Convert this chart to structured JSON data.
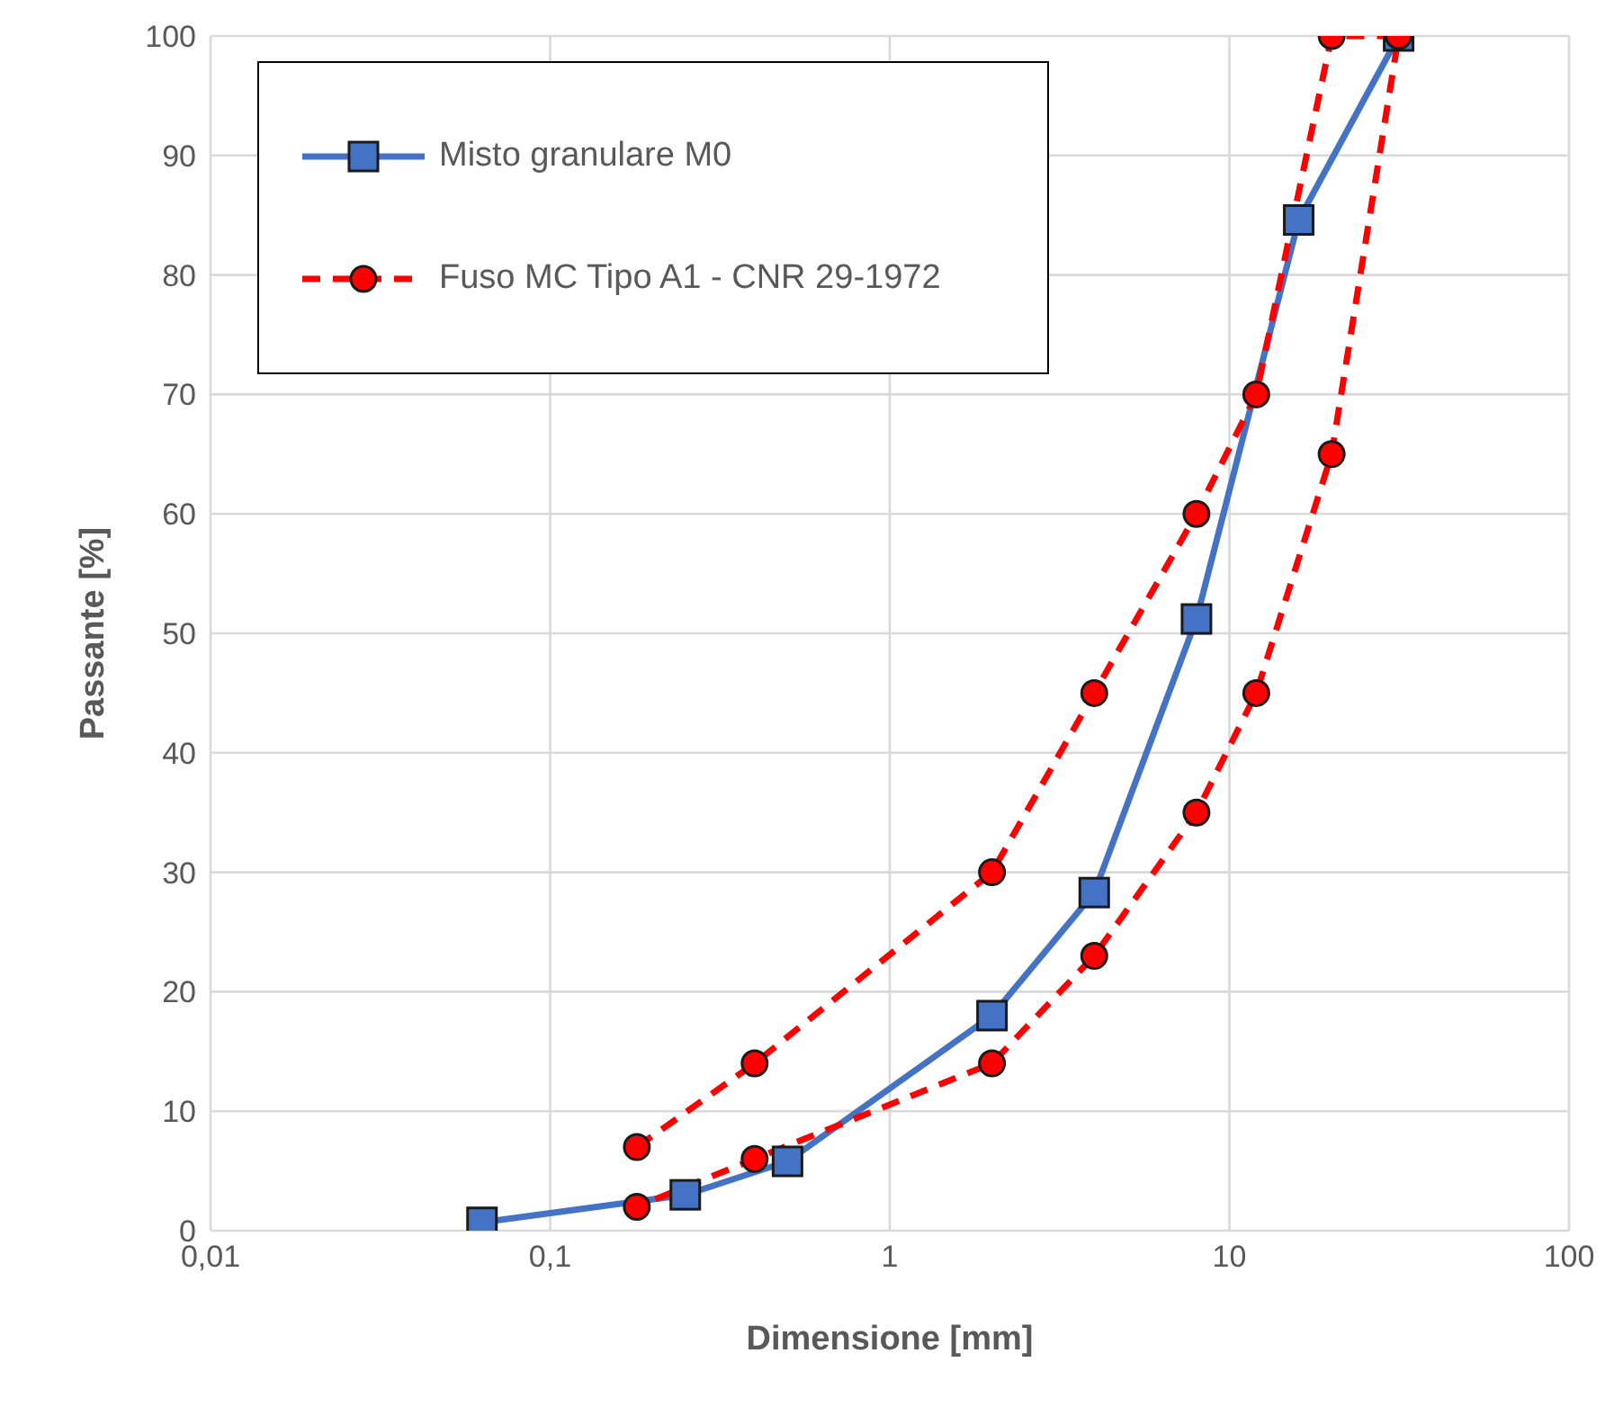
{
  "chart_data": {
    "type": "line",
    "xlabel": "Dimensione [mm]",
    "ylabel": "Passante [%]",
    "log": "x",
    "xlim": [
      0.01,
      100
    ],
    "xticks": [
      {
        "value": 0.01,
        "label": "0,01"
      },
      {
        "value": 0.1,
        "label": "0,1"
      },
      1,
      10,
      100
    ],
    "ylim": [
      0,
      100
    ],
    "yticks": [
      0,
      10,
      20,
      30,
      40,
      50,
      60,
      70,
      80,
      90,
      100
    ],
    "grid": true,
    "legend": "top left",
    "series": [
      {
        "name": "Misto granulare M0",
        "color": "#4472c4",
        "marker": "square",
        "line_style": "solid",
        "x": [
          0.063,
          0.25,
          0.5,
          2,
          4,
          8,
          16,
          31.5
        ],
        "values": [
          0.7,
          3,
          5.8,
          18,
          28.3,
          51.2,
          84.6,
          100
        ]
      },
      {
        "name": "Fuso MC Tipo A1 - CNR 29-1972",
        "color": "#ff0000",
        "marker": "circle",
        "line_style": "dashed",
        "x": [
          0.18,
          0.4,
          2,
          4,
          8,
          12,
          20,
          31.5,
          20,
          12,
          8,
          4,
          2,
          0.4,
          0.18
        ],
        "values": [
          7,
          14,
          30,
          45,
          60,
          70,
          100,
          100,
          65,
          45,
          35,
          23,
          14,
          6,
          2
        ]
      }
    ]
  }
}
